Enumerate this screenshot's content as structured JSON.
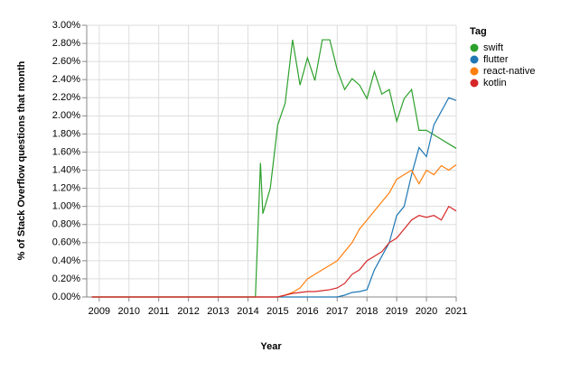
{
  "chart_data": {
    "type": "line",
    "x_label": "Year",
    "y_label": "% of Stack Overflow questions that month",
    "legend_title": "Tag",
    "legend_position": "right",
    "grid": true,
    "x": [
      2008.75,
      2009,
      2009.25,
      2009.5,
      2009.75,
      2010,
      2010.25,
      2010.5,
      2010.75,
      2011,
      2011.25,
      2011.5,
      2011.75,
      2012,
      2012.25,
      2012.5,
      2012.75,
      2013,
      2013.25,
      2013.5,
      2013.75,
      2014,
      2014.25,
      2014.42,
      2014.5,
      2014.75,
      2015,
      2015.25,
      2015.5,
      2015.75,
      2016,
      2016.25,
      2016.5,
      2016.75,
      2017,
      2017.25,
      2017.5,
      2017.75,
      2018,
      2018.25,
      2018.5,
      2018.75,
      2019,
      2019.25,
      2019.5,
      2019.75,
      2020,
      2020.25,
      2020.5,
      2020.75,
      2021
    ],
    "xlim": [
      2008.58,
      2021
    ],
    "xticks": [
      2009,
      2010,
      2011,
      2012,
      2013,
      2014,
      2015,
      2016,
      2017,
      2018,
      2019,
      2020,
      2021
    ],
    "ylim": [
      0,
      3
    ],
    "yticks": [
      {
        "value": 0,
        "label": "0.00%"
      },
      {
        "value": 0.2,
        "label": "0.20%"
      },
      {
        "value": 0.4,
        "label": "0.40%"
      },
      {
        "value": 0.6,
        "label": "0.60%"
      },
      {
        "value": 0.8,
        "label": "0.80%"
      },
      {
        "value": 1,
        "label": "1.00%"
      },
      {
        "value": 1.2,
        "label": "1.20%"
      },
      {
        "value": 1.4,
        "label": "1.40%"
      },
      {
        "value": 1.6,
        "label": "1.60%"
      },
      {
        "value": 1.8,
        "label": "1.80%"
      },
      {
        "value": 2,
        "label": "2.00%"
      },
      {
        "value": 2.2,
        "label": "2.20%"
      },
      {
        "value": 2.4,
        "label": "2.40%"
      },
      {
        "value": 2.6,
        "label": "2.60%"
      },
      {
        "value": 2.8,
        "label": "2.80%"
      },
      {
        "value": 3,
        "label": "3.00%"
      }
    ],
    "series": [
      {
        "name": "swift",
        "color": "#2ca02c",
        "values": [
          0,
          0,
          0,
          0,
          0,
          0,
          0,
          0,
          0,
          0,
          0,
          0,
          0,
          0,
          0,
          0,
          0,
          0,
          0,
          0,
          0,
          0,
          0,
          1.48,
          0.92,
          1.2,
          1.9,
          2.14,
          2.84,
          2.34,
          2.64,
          2.39,
          2.84,
          2.84,
          2.51,
          2.29,
          2.41,
          2.34,
          2.19,
          2.49,
          2.24,
          2.29,
          1.94,
          2.19,
          2.29,
          1.84,
          1.84,
          1.79,
          1.74,
          1.69,
          1.64
        ]
      },
      {
        "name": "flutter",
        "color": "#1f77b4",
        "values": [
          0,
          0,
          0,
          0,
          0,
          0,
          0,
          0,
          0,
          0,
          0,
          0,
          0,
          0,
          0,
          0,
          0,
          0,
          0,
          0,
          0,
          0,
          0,
          0,
          0,
          0,
          0,
          0,
          0,
          0,
          0,
          0,
          0,
          0,
          0,
          0.02,
          0.05,
          0.06,
          0.08,
          0.3,
          0.45,
          0.6,
          0.9,
          1.0,
          1.35,
          1.65,
          1.55,
          1.9,
          2.05,
          2.2,
          2.17
        ]
      },
      {
        "name": "react-native",
        "color": "#ff7f0e",
        "values": [
          0,
          0,
          0,
          0,
          0,
          0,
          0,
          0,
          0,
          0,
          0,
          0,
          0,
          0,
          0,
          0,
          0,
          0,
          0,
          0,
          0,
          0,
          0,
          0,
          0,
          0,
          0,
          0.02,
          0.05,
          0.1,
          0.2,
          0.25,
          0.3,
          0.35,
          0.4,
          0.5,
          0.6,
          0.75,
          0.85,
          0.95,
          1.05,
          1.15,
          1.3,
          1.35,
          1.4,
          1.25,
          1.4,
          1.35,
          1.45,
          1.4,
          1.46
        ]
      },
      {
        "name": "kotlin",
        "color": "#d62728",
        "values": [
          0,
          0,
          0,
          0,
          0,
          0,
          0,
          0,
          0,
          0,
          0,
          0,
          0,
          0,
          0,
          0,
          0,
          0,
          0,
          0,
          0,
          0,
          0,
          0,
          0,
          0,
          0,
          0.02,
          0.04,
          0.05,
          0.06,
          0.06,
          0.07,
          0.08,
          0.1,
          0.15,
          0.25,
          0.3,
          0.4,
          0.45,
          0.5,
          0.6,
          0.65,
          0.75,
          0.85,
          0.9,
          0.88,
          0.9,
          0.85,
          1.0,
          0.95
        ]
      }
    ]
  }
}
